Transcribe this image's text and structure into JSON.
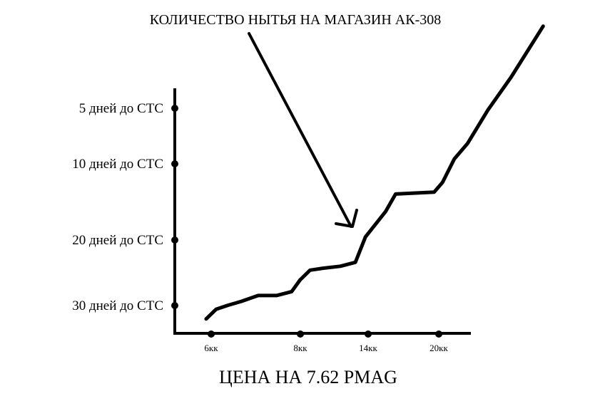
{
  "chart_data": {
    "type": "line",
    "annotation": "КОЛИЧЕСТВО НЫТЬЯ НА МАГАЗИН АК-308",
    "xlabel": "ЦЕНА НА 7.62 PMAG",
    "ylabel": "",
    "x_ticks": [
      {
        "label": "6кк",
        "value": 6
      },
      {
        "label": "8кк",
        "value": 8
      },
      {
        "label": "14кк",
        "value": 14
      },
      {
        "label": "20кк",
        "value": 20
      }
    ],
    "y_ticks": [
      {
        "label": "5 дней до СТС",
        "value": 5
      },
      {
        "label": "10 дней до СТС",
        "value": 10
      },
      {
        "label": "20 дней до СТС",
        "value": 20
      },
      {
        "label": "30 дней до СТС",
        "value": 30
      }
    ],
    "series": [
      {
        "points": [
          [
            -0.3,
            0.3
          ],
          [
            0.3,
            0.8
          ],
          [
            1.0,
            1.0
          ],
          [
            1.8,
            1.2
          ],
          [
            2.8,
            1.5
          ],
          [
            3.9,
            1.5
          ],
          [
            4.8,
            1.7
          ],
          [
            5.3,
            2.3
          ],
          [
            5.9,
            2.8
          ],
          [
            6.7,
            2.9
          ],
          [
            7.7,
            3.0
          ],
          [
            8.6,
            3.2
          ],
          [
            9.2,
            4.5
          ],
          [
            10.4,
            5.8
          ],
          [
            11.0,
            6.7
          ],
          [
            13.3,
            6.8
          ],
          [
            13.8,
            7.3
          ],
          [
            14.5,
            8.5
          ],
          [
            15.3,
            9.3
          ],
          [
            16.5,
            11.0
          ],
          [
            17.9,
            12.7
          ],
          [
            19.8,
            15.3
          ]
        ],
        "color": "#000000"
      }
    ]
  }
}
